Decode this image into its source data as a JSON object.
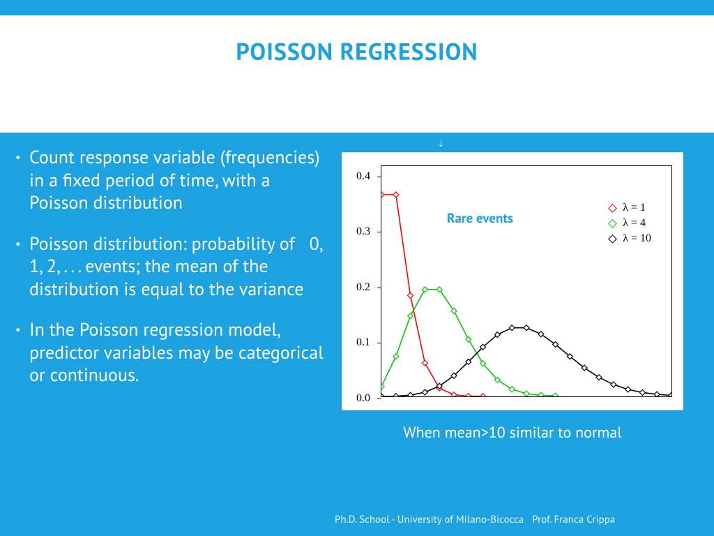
{
  "colors": {
    "accent": "#1ca2e0",
    "white": "#ffffff",
    "text_on_blue": "#ffffff",
    "axis": "#000000"
  },
  "title": "POISSON REGRESSION",
  "bullets": [
    "Count response variable (frequencies) in a fixed period of time, with a Poisson distribution",
    "Poisson distribution: probability of   0, 1, 2, . . . events; the mean of the distribution is equal to the variance",
    "In the Poisson regression model, predictor variables may be categorical or continuous."
  ],
  "chart": {
    "type": "line",
    "annotation": "Rare events",
    "annotation_color": "#1ca2e0",
    "xlim": [
      0,
      20
    ],
    "ylim": [
      0,
      0.42
    ],
    "yticks": [
      0.0,
      0.1,
      0.2,
      0.3,
      0.4
    ],
    "ytick_labels": [
      "0.0",
      "0.1",
      "0.2",
      "0.3",
      "0.4"
    ],
    "legend": [
      {
        "label": "λ = 1",
        "color": "#ff0000"
      },
      {
        "label": "λ = 4",
        "color": "#00cc00"
      },
      {
        "label": "λ = 10",
        "color": "#000000"
      }
    ],
    "series": [
      {
        "color": "#ff0000",
        "marker": "diamond",
        "x": [
          0,
          1,
          2,
          3,
          4,
          5,
          6,
          7
        ],
        "y": [
          0.368,
          0.368,
          0.184,
          0.061,
          0.015,
          0.003,
          0.0005,
          0.0001
        ]
      },
      {
        "color": "#00cc00",
        "marker": "diamond",
        "x": [
          0,
          1,
          2,
          3,
          4,
          5,
          6,
          7,
          8,
          9,
          10,
          11,
          12
        ],
        "y": [
          0.018,
          0.073,
          0.147,
          0.195,
          0.195,
          0.156,
          0.104,
          0.06,
          0.03,
          0.013,
          0.005,
          0.002,
          0.001
        ]
      },
      {
        "color": "#000000",
        "marker": "diamond",
        "x": [
          0,
          1,
          2,
          3,
          4,
          5,
          6,
          7,
          8,
          9,
          10,
          11,
          12,
          13,
          14,
          15,
          16,
          17,
          18,
          19,
          20
        ],
        "y": [
          5e-05,
          0.0005,
          0.0023,
          0.0076,
          0.0189,
          0.0378,
          0.0631,
          0.0901,
          0.1126,
          0.1251,
          0.1251,
          0.1137,
          0.0948,
          0.0729,
          0.0521,
          0.0347,
          0.0217,
          0.0128,
          0.0071,
          0.0037,
          0.0019
        ]
      }
    ]
  },
  "caption": "When mean>10 similar to normal",
  "footer": "Ph.D. School - University of Milano-Bicocca   Prof. Franca Crippa"
}
